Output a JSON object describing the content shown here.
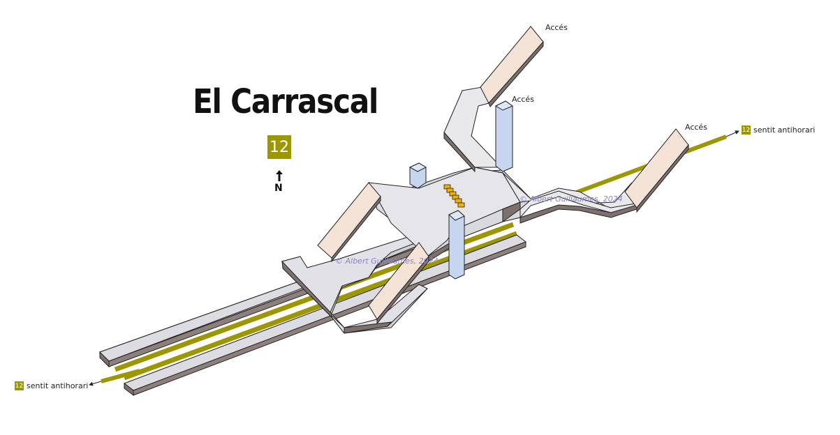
{
  "station": {
    "name": "El Carrascal",
    "line_number": "12",
    "north_label": "N"
  },
  "access_labels": [
    "Accés",
    "Accés",
    "Accés"
  ],
  "directions": {
    "east": {
      "line": "12",
      "text": "sentit antihorari"
    },
    "west": {
      "line": "12",
      "text": "sentit antihorari"
    }
  },
  "watermarks": [
    "© Albert Guillaumes, 2024",
    "© Albert Guillaumes, 2024"
  ],
  "colors": {
    "line_12": "#9c9600",
    "platform": "#dcdce2",
    "hall": "#e9e9ec",
    "stair": "#f4e3d6",
    "elevator": "#c7d6ef",
    "escalator": "#f0b000",
    "watermark": "#8a86c8"
  }
}
